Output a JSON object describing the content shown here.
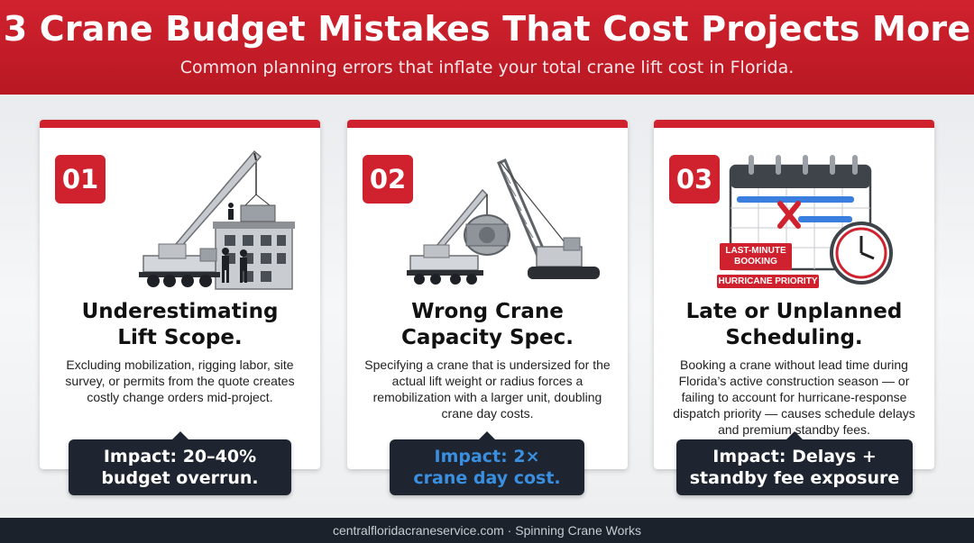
{
  "header": {
    "title": "3 Crane Budget Mistakes That Cost Projects More",
    "subtitle": "Common planning errors that inflate your total crane lift cost in Florida."
  },
  "cards": [
    {
      "number": "01",
      "title_line1": "Underestimating",
      "title_line2": "Lift Scope.",
      "description": "Excluding mobilization, rigging labor, site survey, or permits from the quote creates costly change orders mid-project.",
      "impact_line1": "Impact: 20–40%",
      "impact_line2": "budget overrun.",
      "illustration": "mobile-crane-building-icon"
    },
    {
      "number": "02",
      "title_line1": "Wrong Crane",
      "title_line2": "Capacity Spec.",
      "description": "Specifying a crane that is undersized for the actual lift weight or radius forces a remobilization with a larger unit, doubling crane day costs.",
      "impact_line1": "Impact: 2×",
      "impact_line2": "crane day cost.",
      "illustration": "two-cranes-heavy-load-icon"
    },
    {
      "number": "03",
      "title_line1": "Late or Unplanned",
      "title_line2": "Scheduling.",
      "description": "Booking a crane without lead time during Florida’s active construction season — or failing to account for hurricane-response dispatch priority — causes schedule delays and premium standby fees.",
      "impact_line1": "Impact: Delays +",
      "impact_line2": "standby fee exposure",
      "illustration": "calendar-clock-icon",
      "tag1_line1": "LAST-MINUTE",
      "tag1_line2": "BOOKING",
      "tag2": "HURRICANE PRIORITY"
    }
  ],
  "footer": {
    "text": "centralfloridacraneservice.com · Spinning Crane Works"
  },
  "colors": {
    "brand_red": "#d0222e",
    "dark_navy": "#1e2530",
    "impact_blue": "#3a8fe0"
  }
}
